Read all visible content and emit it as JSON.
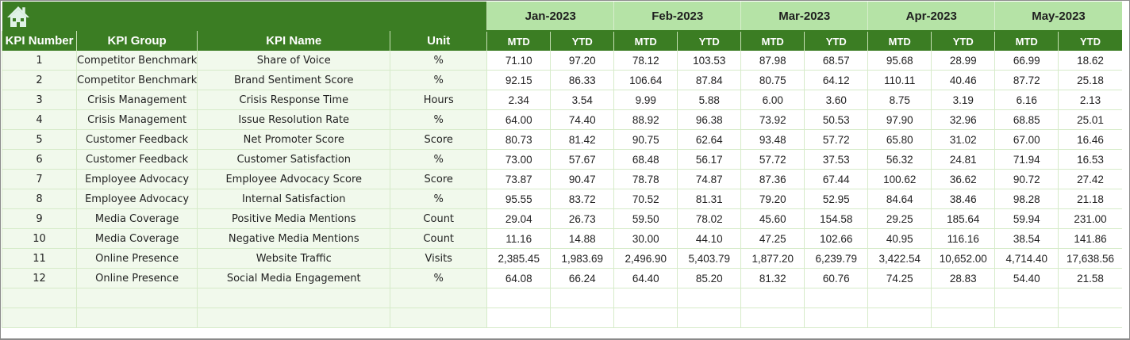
{
  "header": {
    "home_icon": "house-icon",
    "months": [
      "Jan-2023",
      "Feb-2023",
      "Mar-2023",
      "Apr-2023",
      "May-2023"
    ],
    "columns": [
      "KPI Number",
      "KPI Group",
      "KPI Name",
      "Unit"
    ],
    "sub_columns": [
      "MTD",
      "YTD"
    ]
  },
  "colors": {
    "header_green": "#3b7d23",
    "month_header_bg": "#b5e3a6",
    "left_cell_bg": "#f1f9ec",
    "grid_line": "#d6ebc9"
  },
  "rows": [
    {
      "num": "1",
      "group": "Competitor Benchmark",
      "name": "Share of Voice",
      "unit": "%",
      "values": [
        "71.10",
        "97.20",
        "78.12",
        "103.53",
        "87.98",
        "68.57",
        "95.68",
        "28.99",
        "66.99",
        "18.62"
      ]
    },
    {
      "num": "2",
      "group": "Competitor Benchmark",
      "name": "Brand Sentiment Score",
      "unit": "%",
      "values": [
        "92.15",
        "86.33",
        "106.64",
        "87.84",
        "80.75",
        "64.12",
        "110.11",
        "40.46",
        "87.72",
        "25.18"
      ]
    },
    {
      "num": "3",
      "group": "Crisis Management",
      "name": "Crisis Response Time",
      "unit": "Hours",
      "values": [
        "2.34",
        "3.54",
        "9.99",
        "5.88",
        "6.00",
        "3.60",
        "8.75",
        "3.19",
        "6.16",
        "2.13"
      ]
    },
    {
      "num": "4",
      "group": "Crisis Management",
      "name": "Issue Resolution Rate",
      "unit": "%",
      "values": [
        "64.00",
        "74.40",
        "88.92",
        "96.38",
        "73.92",
        "50.53",
        "97.90",
        "32.96",
        "68.85",
        "25.01"
      ]
    },
    {
      "num": "5",
      "group": "Customer Feedback",
      "name": "Net Promoter Score",
      "unit": "Score",
      "values": [
        "80.73",
        "81.42",
        "90.75",
        "62.64",
        "93.48",
        "57.72",
        "65.80",
        "31.02",
        "67.00",
        "16.46"
      ]
    },
    {
      "num": "6",
      "group": "Customer Feedback",
      "name": "Customer Satisfaction",
      "unit": "%",
      "values": [
        "73.00",
        "57.67",
        "68.48",
        "56.17",
        "57.72",
        "37.53",
        "56.32",
        "24.81",
        "71.94",
        "16.53"
      ]
    },
    {
      "num": "7",
      "group": "Employee Advocacy",
      "name": "Employee Advocacy Score",
      "unit": "Score",
      "values": [
        "73.87",
        "90.47",
        "78.78",
        "74.87",
        "87.36",
        "67.44",
        "100.62",
        "36.62",
        "90.72",
        "27.42"
      ]
    },
    {
      "num": "8",
      "group": "Employee Advocacy",
      "name": "Internal Satisfaction",
      "unit": "%",
      "values": [
        "95.55",
        "83.72",
        "70.52",
        "81.31",
        "79.20",
        "52.95",
        "84.64",
        "38.46",
        "98.28",
        "21.18"
      ]
    },
    {
      "num": "9",
      "group": "Media Coverage",
      "name": "Positive Media Mentions",
      "unit": "Count",
      "values": [
        "29.04",
        "26.73",
        "59.50",
        "78.02",
        "45.60",
        "154.58",
        "29.25",
        "185.64",
        "59.94",
        "231.00"
      ]
    },
    {
      "num": "10",
      "group": "Media Coverage",
      "name": "Negative Media Mentions",
      "unit": "Count",
      "values": [
        "11.16",
        "14.88",
        "30.00",
        "44.10",
        "47.25",
        "102.66",
        "40.95",
        "116.16",
        "38.54",
        "141.86"
      ]
    },
    {
      "num": "11",
      "group": "Online Presence",
      "name": "Website Traffic",
      "unit": "Visits",
      "values": [
        "2,385.45",
        "1,983.69",
        "2,496.90",
        "5,403.79",
        "1,877.20",
        "6,239.79",
        "3,422.54",
        "10,652.00",
        "4,714.40",
        "17,638.56"
      ]
    },
    {
      "num": "12",
      "group": "Online Presence",
      "name": "Social Media Engagement",
      "unit": "%",
      "values": [
        "64.08",
        "66.24",
        "64.40",
        "85.20",
        "81.32",
        "60.76",
        "74.25",
        "28.83",
        "54.40",
        "21.58"
      ]
    }
  ]
}
